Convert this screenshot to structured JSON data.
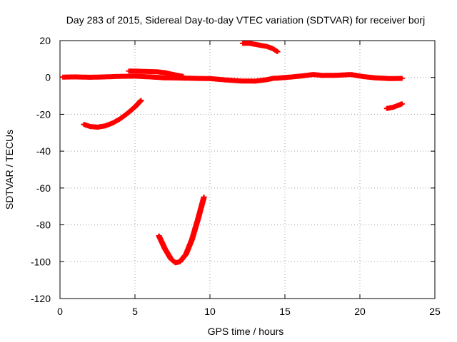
{
  "chart_data": {
    "type": "scatter",
    "title": "Day 283 of 2015, Sidereal Day-to-day VTEC variation (SDTVAR) for receiver borj",
    "xlabel": "GPS time / hours",
    "ylabel": "SDTVAR / TECUs",
    "xlim": [
      0,
      25
    ],
    "ylim": [
      -120,
      20
    ],
    "xticks": [
      0,
      5,
      10,
      15,
      20,
      25
    ],
    "yticks": [
      -120,
      -100,
      -80,
      -60,
      -40,
      -20,
      0,
      20
    ],
    "grid": true,
    "marker": "plus",
    "color": "#ff0000",
    "series": [
      {
        "points": [
          [
            0.2,
            0.2
          ],
          [
            1.0,
            0.3
          ],
          [
            2.0,
            0.1
          ],
          [
            3.0,
            0.3
          ],
          [
            4.0,
            0.6
          ],
          [
            5.0,
            0.7
          ],
          [
            6.0,
            0.3
          ],
          [
            7.0,
            -0.2
          ],
          [
            8.0,
            -0.3
          ],
          [
            9.0,
            -0.5
          ],
          [
            10.0,
            -0.6
          ],
          [
            11.0,
            -1.3
          ],
          [
            12.0,
            -1.9
          ],
          [
            13.0,
            -2.0
          ],
          [
            13.8,
            -1.2
          ],
          [
            14.2,
            -0.5
          ],
          [
            14.6,
            -0.3
          ],
          [
            15.5,
            0.3
          ],
          [
            16.2,
            0.9
          ],
          [
            16.9,
            1.6
          ],
          [
            17.5,
            1.1
          ],
          [
            18.5,
            1.2
          ],
          [
            19.4,
            1.6
          ],
          [
            20.2,
            0.5
          ],
          [
            21.0,
            -0.2
          ],
          [
            22.0,
            -0.6
          ],
          [
            22.8,
            -0.5
          ]
        ]
      },
      {
        "points": [
          [
            4.6,
            3.5
          ],
          [
            5.2,
            3.4
          ],
          [
            5.8,
            3.2
          ],
          [
            6.4,
            3.1
          ],
          [
            7.0,
            2.6
          ],
          [
            7.6,
            1.5
          ],
          [
            8.2,
            0.6
          ]
        ]
      },
      {
        "points": [
          [
            12.2,
            18.5
          ],
          [
            12.6,
            18.6
          ],
          [
            13.0,
            18.0
          ],
          [
            13.4,
            17.4
          ],
          [
            13.8,
            16.8
          ],
          [
            14.2,
            15.6
          ],
          [
            14.5,
            14.0
          ]
        ]
      },
      {
        "points": [
          [
            1.6,
            -25.5
          ],
          [
            2.0,
            -26.6
          ],
          [
            2.5,
            -27.0
          ],
          [
            3.0,
            -26.3
          ],
          [
            3.5,
            -24.8
          ],
          [
            4.0,
            -22.5
          ],
          [
            4.5,
            -19.5
          ],
          [
            5.0,
            -16.0
          ],
          [
            5.4,
            -12.5
          ]
        ]
      },
      {
        "points": [
          [
            6.6,
            -86.0
          ],
          [
            7.0,
            -93.0
          ],
          [
            7.4,
            -98.5
          ],
          [
            7.7,
            -100.6
          ],
          [
            8.0,
            -100.0
          ],
          [
            8.4,
            -96.0
          ],
          [
            8.8,
            -88.0
          ],
          [
            9.2,
            -77.0
          ],
          [
            9.6,
            -65.0
          ]
        ]
      },
      {
        "points": [
          [
            21.8,
            -16.8
          ],
          [
            22.2,
            -16.2
          ],
          [
            22.6,
            -15.0
          ],
          [
            22.8,
            -14.3
          ]
        ]
      }
    ]
  }
}
